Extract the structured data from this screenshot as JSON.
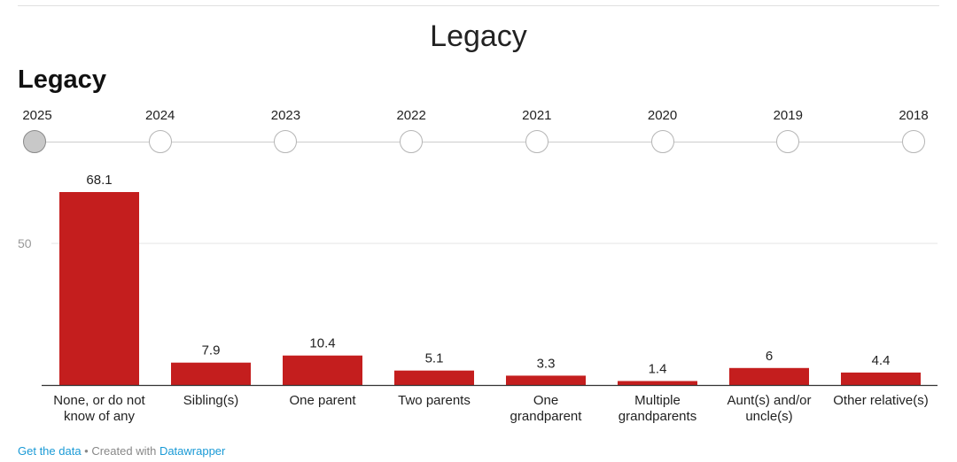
{
  "page_title": "Legacy",
  "chart_title": "Legacy",
  "years": [
    "2025",
    "2024",
    "2023",
    "2022",
    "2021",
    "2020",
    "2019",
    "2018"
  ],
  "active_year": "2025",
  "footer": {
    "get_data": "Get the data",
    "separator": " • Created with ",
    "tool": "Datawrapper"
  },
  "colors": {
    "bar": "#c41e1e",
    "grid": "#e5e5e5",
    "axis": "#333333"
  },
  "chart_data": {
    "type": "bar",
    "title": "Legacy",
    "categories": [
      [
        "None, or do not",
        "know of any"
      ],
      [
        "Sibling(s)"
      ],
      [
        "One parent"
      ],
      [
        "Two parents"
      ],
      [
        "One",
        "grandparent"
      ],
      [
        "Multiple",
        "grandparents"
      ],
      [
        "Aunt(s) and/or",
        "uncle(s)"
      ],
      [
        "Other relative(s)"
      ]
    ],
    "values": [
      68.1,
      7.9,
      10.4,
      5.1,
      3.3,
      1.4,
      6,
      4.4
    ],
    "yticks": [
      50
    ],
    "ylim": [
      0,
      68.1
    ],
    "xlabel": "",
    "ylabel": ""
  }
}
